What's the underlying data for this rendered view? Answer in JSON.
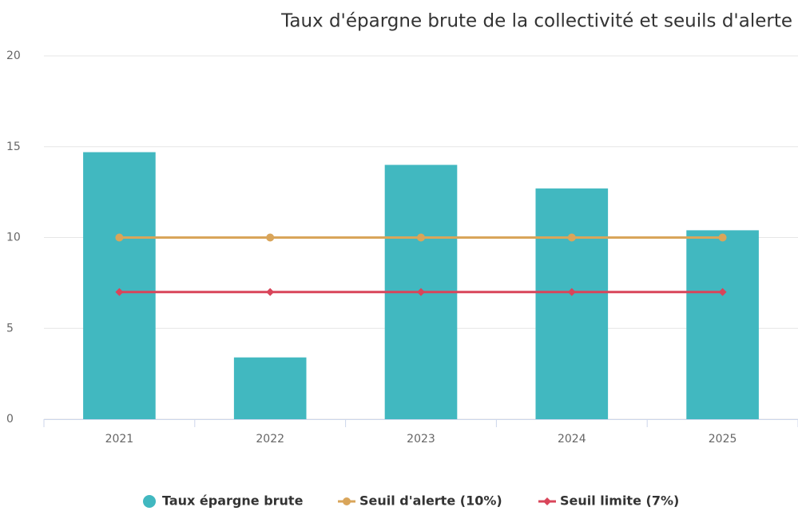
{
  "chart_data": {
    "type": "bar",
    "title": "Taux d'épargne brute de la collectivité et seuils d'alerte",
    "categories": [
      "2021",
      "2022",
      "2023",
      "2024",
      "2025"
    ],
    "series": [
      {
        "name": "Taux épargne brute",
        "type": "bar",
        "color": "#41b8c0",
        "values": [
          14.7,
          3.4,
          14.0,
          12.7,
          10.4
        ]
      },
      {
        "name": "Seuil d'alerte (10%)",
        "type": "line",
        "marker": "circle",
        "color": "#d9a55a",
        "values": [
          10,
          10,
          10,
          10,
          10
        ]
      },
      {
        "name": "Seuil limite (7%)",
        "type": "line",
        "marker": "diamond",
        "color": "#d9455a",
        "values": [
          7,
          7,
          7,
          7,
          7
        ]
      }
    ],
    "ylim": [
      0,
      20
    ],
    "yticks": [
      0,
      5,
      10,
      15,
      20
    ],
    "grid": true,
    "legend": "bottom"
  }
}
